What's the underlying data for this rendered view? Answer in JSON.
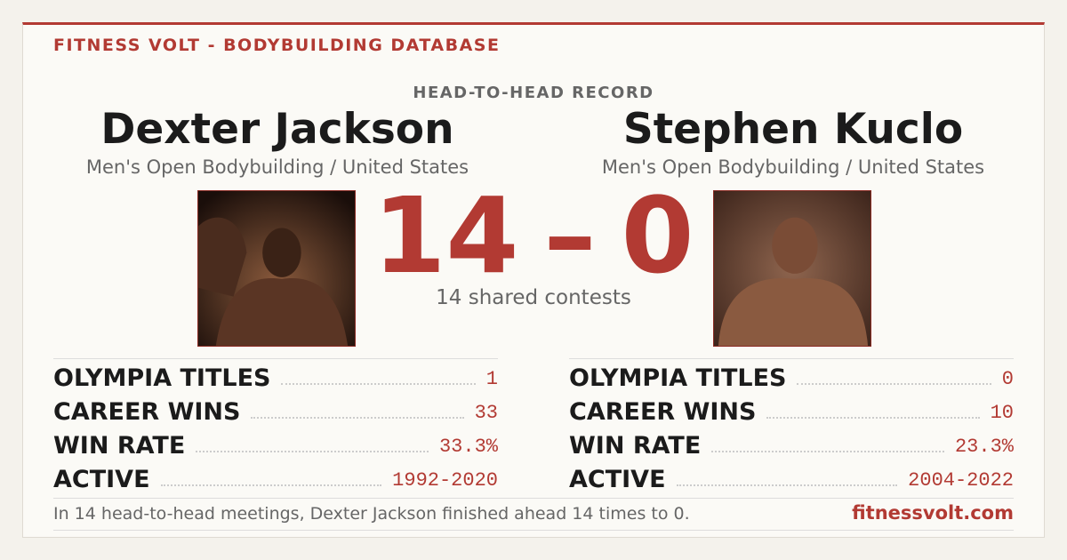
{
  "header": {
    "brand": "FITNESS VOLT - BODYBUILDING DATABASE"
  },
  "matchup": {
    "heading": "HEAD-TO-HEAD RECORD",
    "left": {
      "name": "Dexter Jackson",
      "division": "Men's Open Bodybuilding / United States"
    },
    "right": {
      "name": "Stephen Kuclo",
      "division": "Men's Open Bodybuilding / United States"
    },
    "score": {
      "left": 14,
      "separator": "–",
      "right": 0
    },
    "shared": "14 shared contests"
  },
  "stats": {
    "left": [
      {
        "label": "OLYMPIA TITLES",
        "value": 1
      },
      {
        "label": "CAREER WINS",
        "value": 33
      },
      {
        "label": "WIN RATE",
        "value": "33.3%"
      },
      {
        "label": "ACTIVE",
        "value": "1992-2020"
      }
    ],
    "right": [
      {
        "label": "OLYMPIA TITLES",
        "value": 0
      },
      {
        "label": "CAREER WINS",
        "value": 10
      },
      {
        "label": "WIN RATE",
        "value": "23.3%"
      },
      {
        "label": "ACTIVE",
        "value": "2004-2022"
      }
    ]
  },
  "footer": {
    "summary": "In 14 head-to-head meetings, Dexter Jackson finished ahead 14 times to 0.",
    "site": "fitnessvolt.com"
  }
}
